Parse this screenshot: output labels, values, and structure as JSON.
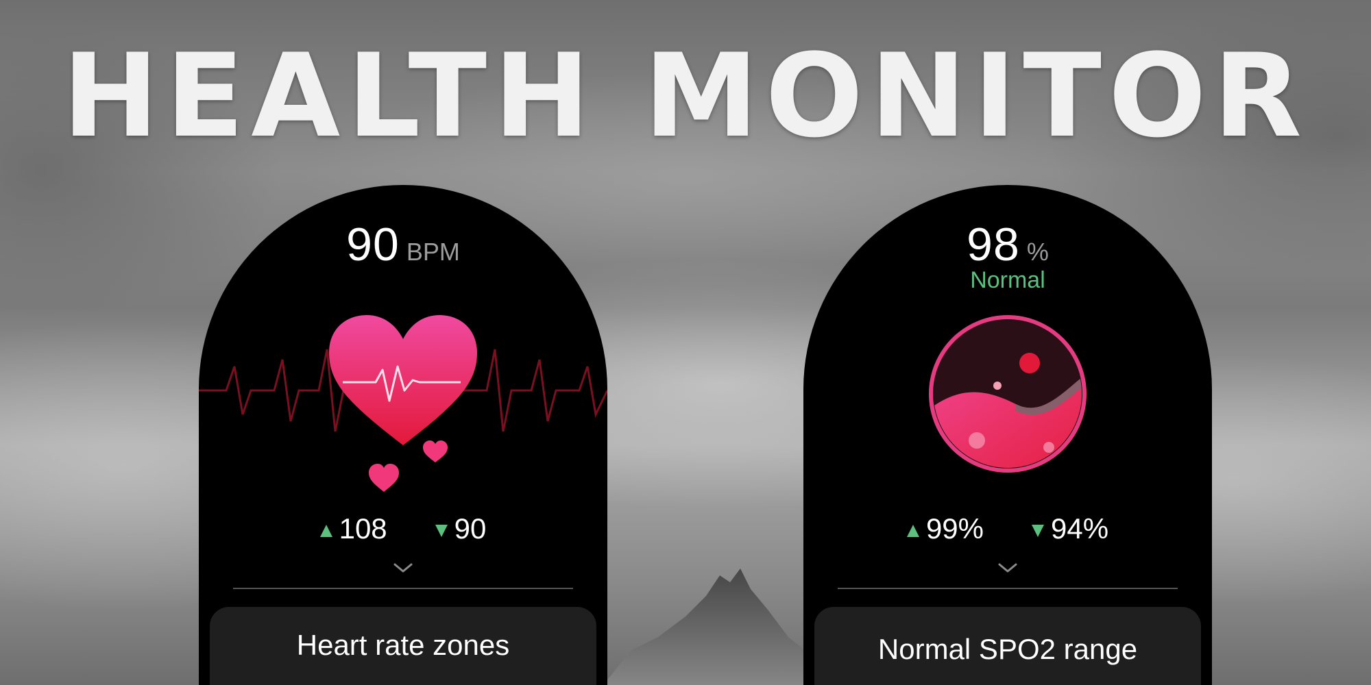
{
  "headline": "HEALTH MONITOR",
  "colors": {
    "accent_green": "#5cc17e",
    "heart_pink": "#f0387a",
    "panel_bg": "#000000",
    "card_bg": "#1f1f1f"
  },
  "heart_rate": {
    "value": "90",
    "unit": "BPM",
    "high": "108",
    "low": "90",
    "high_icon": "triangle-up-icon",
    "low_icon": "triangle-down-icon",
    "expand_icon": "chevron-down-icon",
    "card_label": "Heart rate zones"
  },
  "spo2": {
    "value": "98",
    "unit": "%",
    "status": "Normal",
    "high": "99%",
    "low": "94%",
    "high_icon": "triangle-up-icon",
    "low_icon": "triangle-down-icon",
    "expand_icon": "chevron-down-icon",
    "card_label": "Normal SPO2 range"
  }
}
